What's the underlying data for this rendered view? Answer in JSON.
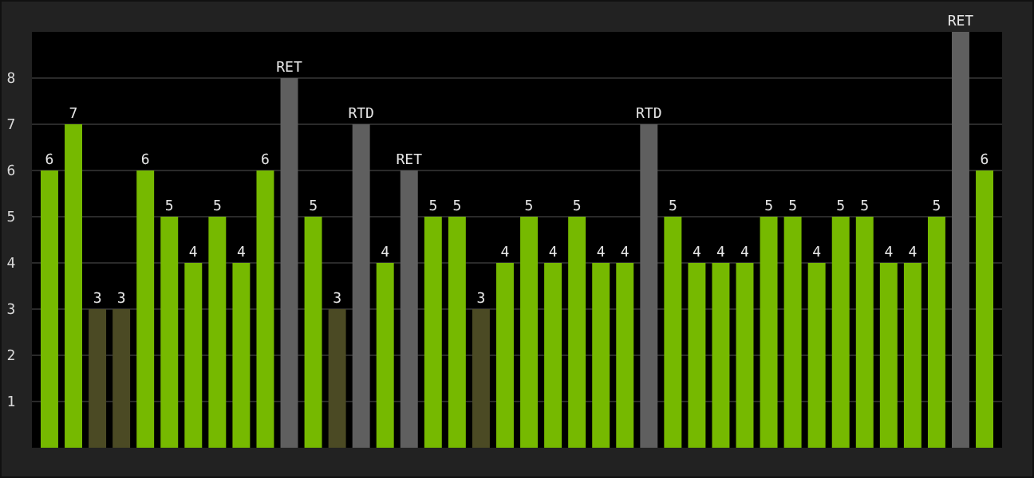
{
  "chart_data": {
    "type": "bar",
    "categories": [
      null,
      null,
      null,
      null,
      null,
      null,
      null,
      null,
      null,
      null,
      null,
      null,
      null,
      null,
      null,
      null,
      null,
      null,
      null,
      null,
      null,
      null,
      null,
      null,
      null,
      null,
      null,
      null,
      null,
      null,
      null,
      null,
      null,
      null,
      null,
      null,
      null,
      null,
      null,
      null
    ],
    "values": [
      6,
      7,
      3,
      3,
      6,
      5,
      4,
      5,
      4,
      6,
      8,
      5,
      3,
      7,
      4,
      6,
      5,
      5,
      3,
      4,
      5,
      4,
      5,
      4,
      4,
      7,
      5,
      4,
      4,
      4,
      5,
      5,
      4,
      5,
      5,
      4,
      4,
      5,
      9,
      6
    ],
    "colors": [
      "#76b900",
      "#76b900",
      "#4b4a24",
      "#4b4a24",
      "#76b900",
      "#76b900",
      "#76b900",
      "#76b900",
      "#76b900",
      "#76b900",
      "#5f5f5f",
      "#76b900",
      "#4b4a24",
      "#5f5f5f",
      "#76b900",
      "#5f5f5f",
      "#76b900",
      "#76b900",
      "#4b4a24",
      "#76b900",
      "#76b900",
      "#76b900",
      "#76b900",
      "#76b900",
      "#76b900",
      "#5f5f5f",
      "#76b900",
      "#76b900",
      "#76b900",
      "#76b900",
      "#76b900",
      "#76b900",
      "#76b900",
      "#76b900",
      "#76b900",
      "#76b900",
      "#76b900",
      "#76b900",
      "#5f5f5f",
      "#76b900"
    ],
    "value_labels": [
      "6",
      "7",
      "3",
      "3",
      "6",
      "5",
      "4",
      "5",
      "4",
      "6",
      "RET",
      "5",
      "3",
      "RTD",
      "4",
      "RET",
      "5",
      "5",
      "3",
      "4",
      "5",
      "4",
      "5",
      "4",
      "4",
      "RTD",
      "5",
      "4",
      "4",
      "4",
      "5",
      "5",
      "4",
      "5",
      "5",
      "4",
      "4",
      "5",
      "RET",
      "6"
    ],
    "ylim": [
      0,
      9
    ],
    "yticks": [
      1,
      2,
      3,
      4,
      5,
      6,
      7,
      8
    ],
    "grid": "y",
    "tick_labels": "y"
  }
}
